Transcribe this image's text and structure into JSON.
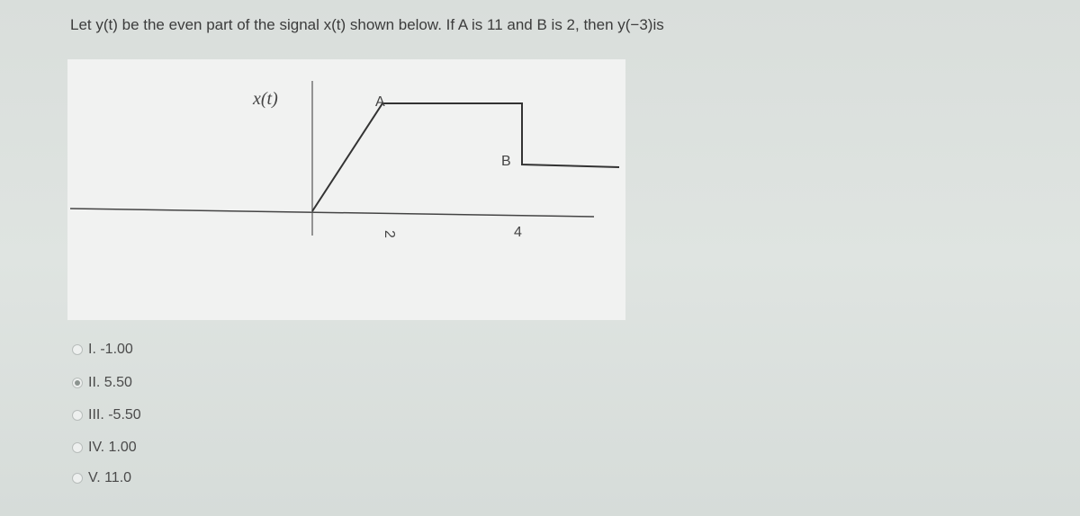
{
  "question": {
    "text": "Let y(t) be the even part of the signal x(t) shown below. If A is 11 and B is 2, then  y(−3)is"
  },
  "figure": {
    "signal_label": "x(t)",
    "level_a_label": "A",
    "level_b_label": "B",
    "tick_labels": [
      "2",
      "4"
    ]
  },
  "options": {
    "items": [
      "I. -1.00",
      "II. 5.50",
      "III. -5.50",
      "IV. 1.00",
      "V. 11.0"
    ],
    "selected": 1
  }
}
